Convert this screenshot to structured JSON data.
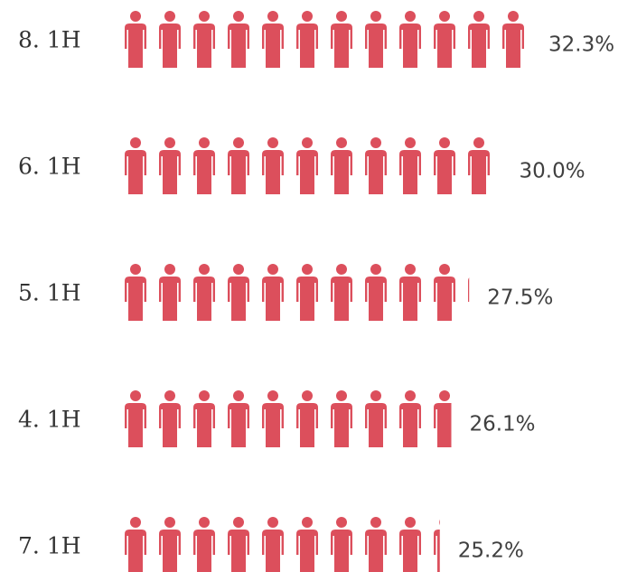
{
  "chart_data": {
    "type": "pictogram",
    "categories": [
      "8. 1H",
      "6. 1H",
      "5. 1H",
      "4. 1H",
      "7. 1H"
    ],
    "values": [
      32.3,
      30.0,
      27.5,
      26.1,
      25.2
    ],
    "value_labels": [
      "32.3%",
      "30.0%",
      "27.5%",
      "26.1%",
      "25.2%"
    ],
    "color": "#dc4f5c"
  }
}
